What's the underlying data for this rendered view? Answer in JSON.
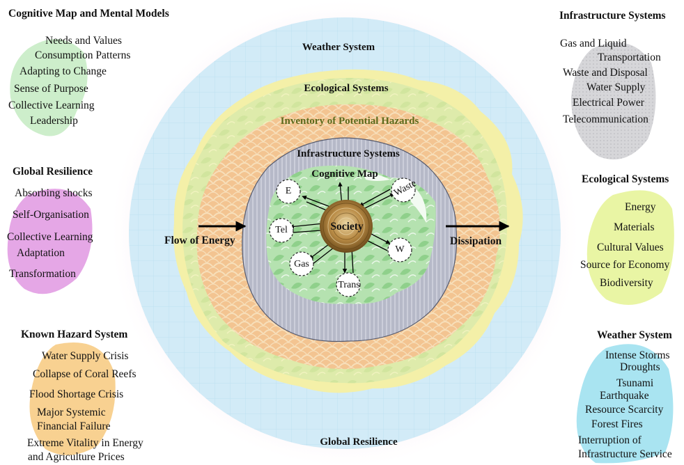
{
  "center": {
    "rings": {
      "weather": "Weather System",
      "ecological": "Ecological Systems",
      "hazards": "Inventory of Potential Hazards",
      "infrastructure": "Infrastructure Systems",
      "resilience": "Global Resilience"
    },
    "cognitive_map": "Cognitive Map",
    "society": "Society",
    "nodes": {
      "e": "E",
      "waste": "Waste",
      "tel": "Tel",
      "w": "W",
      "gas": "Gas",
      "trans": "Trans"
    },
    "flow_in": "Flow of Energy",
    "flow_out": "Dissipation"
  },
  "panels": {
    "cognitive": {
      "title": "Cognitive Map and Mental Models",
      "items": [
        "Needs and Values",
        "Consumption Patterns",
        "Adapting to Change",
        "Sense of Purpose",
        "Collective Learning",
        "Leadership"
      ]
    },
    "global_resilience": {
      "title": "Global Resilience",
      "items": [
        "Absorbing shocks",
        "Self-Organisation",
        "Collective Learning",
        "Adaptation",
        "Transformation"
      ]
    },
    "known_hazard": {
      "title": "Known Hazard System",
      "items": [
        "Water Supply Crisis",
        "Collapse of Coral Reefs",
        "Flood Shortage Crisis",
        "Major Systemic",
        "Financial Failure",
        "Extreme Vitality in Energy",
        "and Agriculture Prices"
      ]
    },
    "infrastructure": {
      "title": "Infrastructure Systems",
      "items": [
        "Gas and Liquid",
        "Transportation",
        "Waste and Disposal",
        "Water Supply",
        "Electrical Power",
        "Telecommunication"
      ]
    },
    "ecological": {
      "title": "Ecological Systems",
      "items": [
        "Energy",
        "Materials",
        "Cultural Values",
        "Source for Economy",
        "Biodiversity"
      ]
    },
    "weather": {
      "title": "Weather System",
      "items": [
        "Intense Storms",
        "Droughts",
        "Tsunami",
        "Earthquake",
        "Resource Scarcity",
        "Forest Fires",
        "Interruption of",
        "Infrastructure Service"
      ]
    }
  },
  "colors": {
    "weather_ring": "#bfe3f4",
    "outer_halo": "#fbe9f2",
    "ecological_ring": "#f4f0a8",
    "hazard_ring": "#f3bb84",
    "infrastructure_ring": "#b9bccb",
    "cognitive_core": "#a9dba5",
    "society": "#a8793a",
    "cognitive_blob": "#cdeecb",
    "resilience_blob": "#e5a7e6",
    "hazard_blob": "#f8d191",
    "infra_blob": "#d3d3d6",
    "eco_blob": "#e9f5a4",
    "weather_blob": "#a9e4f1",
    "hazard_heading": "#5c6a1c"
  },
  "icons": {
    "flow_in_arrow": "arrow-right-icon",
    "flow_out_arrow": "arrow-right-icon",
    "node_links": "double-arrow-icon"
  }
}
